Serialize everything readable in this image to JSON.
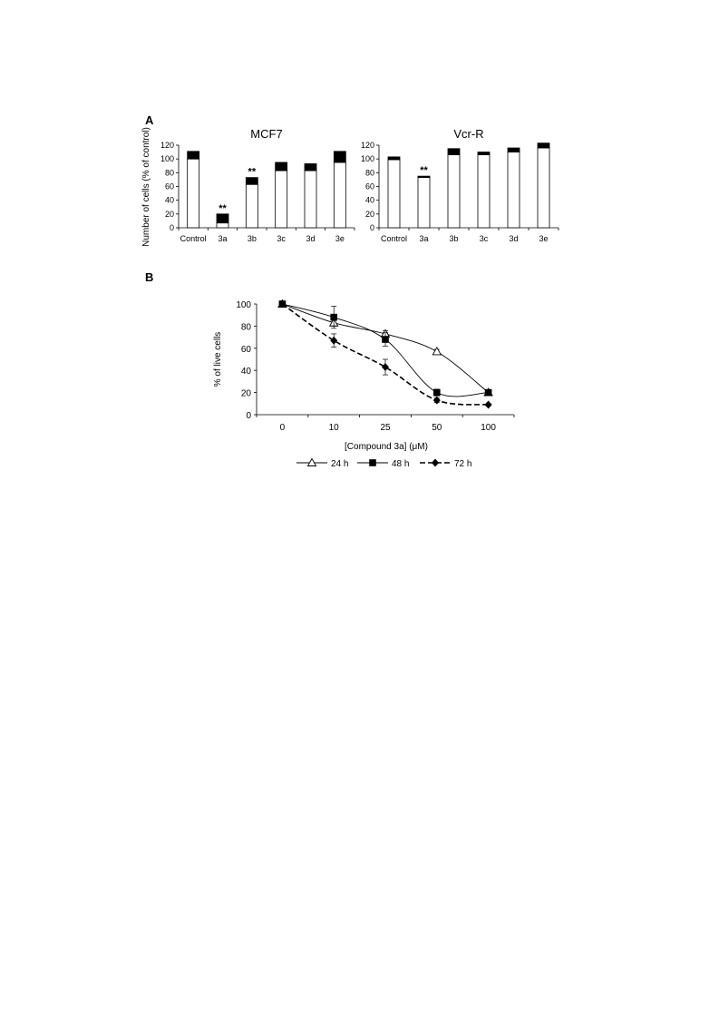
{
  "panels": {
    "a_label": "A",
    "b_label": "B"
  },
  "chart_data": [
    {
      "type": "bar",
      "stacked": true,
      "title": "MCF7",
      "ylabel": "Number of cells (% of control)",
      "xlabel": "",
      "ylim": [
        0,
        120
      ],
      "yticks": [
        0,
        20,
        40,
        60,
        80,
        100,
        120
      ],
      "categories": [
        "Control",
        "3a",
        "3b",
        "3c",
        "3d",
        "3e"
      ],
      "series": [
        {
          "color": "#ffffff",
          "values": [
            100,
            7,
            63,
            83,
            83,
            95
          ]
        },
        {
          "color": "#000000",
          "values": [
            11,
            13,
            10,
            12,
            10,
            16
          ]
        }
      ],
      "annotations": [
        {
          "category": "3a",
          "text": "**"
        },
        {
          "category": "3b",
          "text": "**"
        }
      ]
    },
    {
      "type": "bar",
      "stacked": true,
      "title": "Vcr-R",
      "ylabel": "",
      "xlabel": "",
      "ylim": [
        0,
        120
      ],
      "yticks": [
        0,
        20,
        40,
        60,
        80,
        100,
        120
      ],
      "categories": [
        "Control",
        "3a",
        "3b",
        "3c",
        "3d",
        "3e"
      ],
      "series": [
        {
          "color": "#ffffff",
          "values": [
            99,
            73,
            106,
            106,
            110,
            116
          ]
        },
        {
          "color": "#000000",
          "values": [
            4,
            2,
            9,
            4,
            6,
            7
          ]
        }
      ],
      "annotations": [
        {
          "category": "3a",
          "text": "**"
        }
      ]
    },
    {
      "type": "line",
      "title": "",
      "xlabel": "[Compound 3a] (μM)",
      "ylabel": "% of live cells",
      "ylim": [
        0,
        100
      ],
      "yticks": [
        0,
        20,
        40,
        60,
        80,
        100
      ],
      "categories": [
        "0",
        "10",
        "25",
        "50",
        "100"
      ],
      "legend_position": "bottom",
      "series": [
        {
          "name": "24 h",
          "marker": "open-triangle",
          "dash": "solid",
          "values": [
            100,
            83,
            73,
            57,
            20
          ],
          "errors": [
            0,
            3,
            3,
            2,
            1
          ]
        },
        {
          "name": "48 h",
          "marker": "filled-square",
          "dash": "solid",
          "values": [
            100,
            88,
            68,
            20,
            20
          ],
          "errors": [
            0,
            10,
            6,
            3,
            1
          ]
        },
        {
          "name": "72 h",
          "marker": "filled-diamond",
          "dash": "dashed",
          "values": [
            100,
            67,
            43,
            13,
            9
          ],
          "errors": [
            0,
            6,
            7,
            2,
            1
          ]
        }
      ]
    }
  ]
}
